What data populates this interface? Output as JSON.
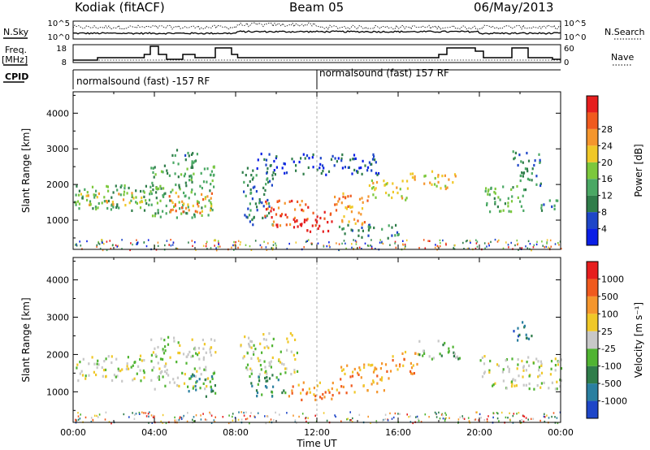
{
  "header": {
    "station": "Kodiak (fitACF)",
    "beam": "Beam 05",
    "date": "06/May/2013"
  },
  "summary": {
    "nsky_label": "N.Sky",
    "nsearch_label": "N.Search",
    "nsky_ticks": [
      "10^5",
      "10^0"
    ],
    "nsearch_ticks": [
      "10^5",
      "10^0"
    ],
    "freq_label_line1": "Freq.",
    "freq_label_line2": "[MHz]",
    "freq_ticks": [
      "18",
      "8"
    ],
    "nave_label": "Nave",
    "nave_ticks": [
      "60",
      "0"
    ],
    "cpid_label": "CPID",
    "cpid_segments": [
      {
        "text": "normalsound (fast) -157 RF",
        "start_hour": 0
      },
      {
        "text": "normalsound (fast) 157 RF",
        "start_hour": 12
      }
    ]
  },
  "chart_data": [
    {
      "type": "heatmap",
      "name": "power",
      "xlabel": "",
      "ylabel": "Slant Range [km]",
      "xlim": [
        0,
        24
      ],
      "ylim": [
        180,
        4600
      ],
      "yticks": [
        1000,
        2000,
        3000,
        4000
      ],
      "colorbar": {
        "label": "Power [dB]",
        "ticks": [
          "4",
          "8",
          "12",
          "16",
          "20",
          "24",
          "28"
        ],
        "colors": [
          "#0a1ee6",
          "#1e46c8",
          "#2f7d4a",
          "#4aa864",
          "#7cc83c",
          "#f0c828",
          "#f5962d",
          "#f05a1e",
          "#e61e1e"
        ]
      },
      "regions": [
        {
          "t0": 0.0,
          "t1": 3.9,
          "r0": 1300,
          "r1": 2050,
          "level": 3
        },
        {
          "t0": 0.2,
          "t1": 3.6,
          "r0": 1450,
          "r1": 1800,
          "level": 5
        },
        {
          "t0": 3.8,
          "t1": 7.0,
          "r0": 1100,
          "r1": 2600,
          "level": 3
        },
        {
          "t0": 4.6,
          "t1": 6.8,
          "r0": 1200,
          "r1": 1800,
          "level": 6
        },
        {
          "t0": 4.8,
          "t1": 6.2,
          "r0": 2500,
          "r1": 3000,
          "level": 2
        },
        {
          "t0": 8.3,
          "t1": 9.8,
          "r0": 900,
          "r1": 2500,
          "level": 2
        },
        {
          "t0": 9.4,
          "t1": 11.6,
          "r0": 800,
          "r1": 1600,
          "level": 7
        },
        {
          "t0": 10.8,
          "t1": 12.8,
          "r0": 700,
          "r1": 1300,
          "level": 8
        },
        {
          "t0": 12.8,
          "t1": 14.5,
          "r0": 900,
          "r1": 1800,
          "level": 6
        },
        {
          "t0": 14.5,
          "t1": 16.4,
          "r0": 1600,
          "r1": 2200,
          "level": 5
        },
        {
          "t0": 16.4,
          "t1": 18.8,
          "r0": 1900,
          "r1": 2400,
          "level": 5
        },
        {
          "t0": 9.0,
          "t1": 15.0,
          "r0": 2300,
          "r1": 2900,
          "level": 1
        },
        {
          "t0": 13.0,
          "t1": 16.0,
          "r0": 500,
          "r1": 900,
          "level": 2
        },
        {
          "t0": 20.2,
          "t1": 22.3,
          "r0": 1200,
          "r1": 2000,
          "level": 3
        },
        {
          "t0": 21.6,
          "t1": 23.0,
          "r0": 2000,
          "r1": 3000,
          "level": 2
        },
        {
          "t0": 23.0,
          "t1": 24.0,
          "r0": 1200,
          "r1": 1600,
          "level": 2
        }
      ]
    },
    {
      "type": "heatmap",
      "name": "velocity",
      "xlabel": "Time UT",
      "ylabel": "Slant Range [km]",
      "xlim": [
        0,
        24
      ],
      "ylim": [
        180,
        4600
      ],
      "yticks": [
        1000,
        2000,
        3000,
        4000
      ],
      "xticks": [
        "00:00",
        "04:00",
        "08:00",
        "12:00",
        "16:00",
        "20:00",
        "00:00"
      ],
      "colorbar": {
        "label": "Velocity [m s⁻¹]",
        "ticks": [
          "1000",
          "500",
          "100",
          "25",
          "-25",
          "-100",
          "-500",
          "-1000"
        ],
        "colors": [
          "#1e46c8",
          "#2a7fa0",
          "#2f7d4a",
          "#50b432",
          "#c8c8c8",
          "#f0c828",
          "#f5962d",
          "#f05a1e",
          "#e61e1e"
        ]
      },
      "regions": [
        {
          "t0": 0.0,
          "t1": 3.6,
          "r0": 1300,
          "r1": 2000,
          "level": 4
        },
        {
          "t0": 3.8,
          "t1": 7.0,
          "r0": 1100,
          "r1": 2500,
          "level": 4
        },
        {
          "t0": 5.6,
          "t1": 7.0,
          "r0": 900,
          "r1": 1500,
          "level": 2
        },
        {
          "t0": 8.2,
          "t1": 11.0,
          "r0": 1500,
          "r1": 2600,
          "level": 4
        },
        {
          "t0": 8.6,
          "t1": 10.5,
          "r0": 900,
          "r1": 1500,
          "level": 2
        },
        {
          "t0": 10.5,
          "t1": 13.0,
          "r0": 800,
          "r1": 1300,
          "level": 6
        },
        {
          "t0": 13.0,
          "t1": 15.5,
          "r0": 1000,
          "r1": 1800,
          "level": 6
        },
        {
          "t0": 15.5,
          "t1": 17.0,
          "r0": 1500,
          "r1": 2100,
          "level": 6
        },
        {
          "t0": 17.0,
          "t1": 19.0,
          "r0": 1900,
          "r1": 2400,
          "level": 3
        },
        {
          "t0": 20.0,
          "t1": 24.0,
          "r0": 1100,
          "r1": 2000,
          "level": 4
        },
        {
          "t0": 21.6,
          "t1": 22.6,
          "r0": 2400,
          "r1": 2900,
          "level": 1
        }
      ]
    }
  ]
}
